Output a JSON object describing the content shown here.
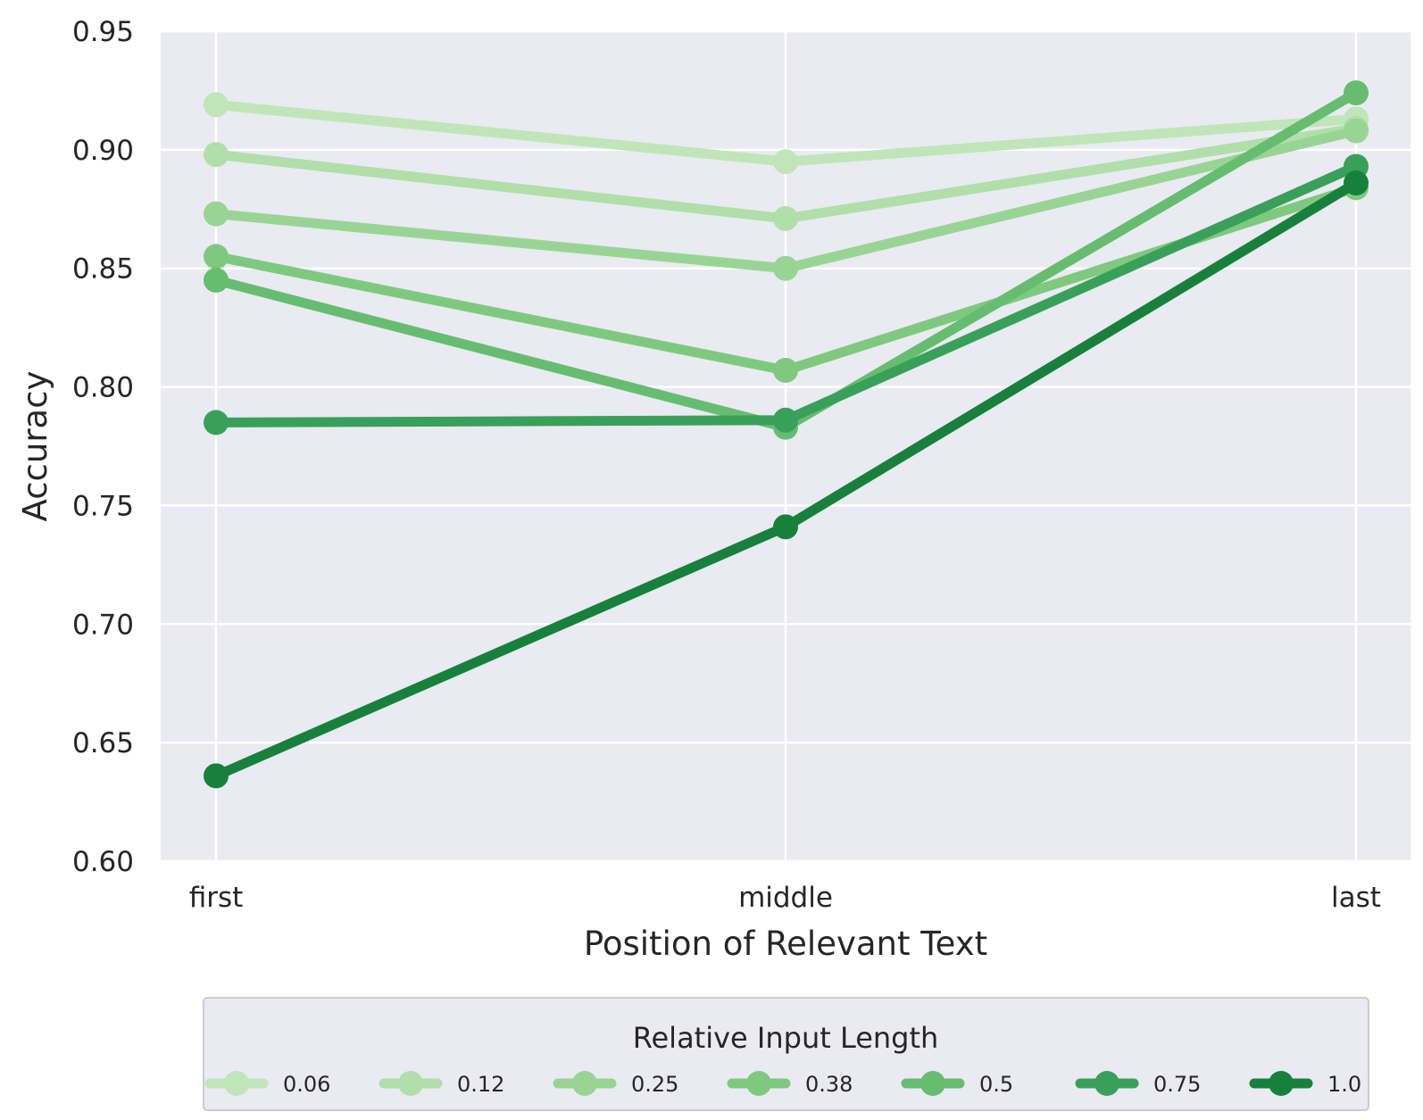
{
  "chart_data": {
    "type": "line",
    "title": "",
    "xlabel": "Position of Relevant Text",
    "ylabel": "Accuracy",
    "categories": [
      "first",
      "middle",
      "last"
    ],
    "ylim": [
      0.6,
      0.95
    ],
    "yticks": [
      0.6,
      0.65,
      0.7,
      0.75,
      0.8,
      0.85,
      0.9,
      0.95
    ],
    "ytick_labels": [
      "0.60",
      "0.65",
      "0.70",
      "0.75",
      "0.80",
      "0.85",
      "0.90",
      "0.95"
    ],
    "grid": true,
    "background": "#eaeaf2",
    "legend": {
      "title": "Relative Input Length",
      "placement": "bottom-center"
    },
    "series": [
      {
        "name": "0.06",
        "color": "#bfe5b9",
        "values": [
          0.919,
          0.895,
          0.913
        ]
      },
      {
        "name": "0.12",
        "color": "#b0dfaa",
        "values": [
          0.898,
          0.871,
          0.909
        ]
      },
      {
        "name": "0.25",
        "color": "#98d594",
        "values": [
          0.873,
          0.85,
          0.908
        ]
      },
      {
        "name": "0.38",
        "color": "#7fc97f",
        "values": [
          0.855,
          0.807,
          0.884
        ]
      },
      {
        "name": "0.5",
        "color": "#66bd6f",
        "values": [
          0.845,
          0.783,
          0.924
        ]
      },
      {
        "name": "0.75",
        "color": "#39a05a",
        "values": [
          0.785,
          0.786,
          0.893
        ]
      },
      {
        "name": "1.0",
        "color": "#17813c",
        "values": [
          0.636,
          0.741,
          0.886
        ]
      }
    ]
  }
}
